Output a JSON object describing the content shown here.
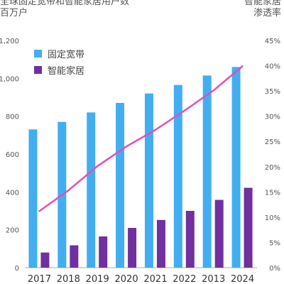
{
  "title_left": "全球固定宽带和智能家居用户数",
  "subtitle_left": "百万户",
  "title_right_line1": "智能家居",
  "title_right_line2": "渗透率",
  "colors": {
    "bar_broadband": "#42aef0",
    "bar_smarthome": "#7030a0",
    "line_penetration": "#e050b8",
    "axis_text": "#555555",
    "axis_line": "#aaaaaa"
  },
  "chart_data": {
    "type": "bar",
    "categories": [
      "2017",
      "2018",
      "2019",
      "2020",
      "2021",
      "2022",
      "2013",
      "2024"
    ],
    "series": [
      {
        "name": "固定宽带",
        "type": "bar",
        "axis": "left",
        "values": [
          730,
          770,
          820,
          870,
          920,
          965,
          1015,
          1060
        ]
      },
      {
        "name": "智能家居",
        "type": "bar",
        "axis": "left",
        "values": [
          80,
          118,
          165,
          210,
          252,
          300,
          358,
          422
        ]
      },
      {
        "type": "line",
        "axis": "right",
        "values": [
          11.2,
          15.3,
          20.1,
          24.0,
          27.3,
          31.1,
          35.1,
          39.9
        ]
      }
    ],
    "y_left": {
      "min": 0,
      "max": 1200,
      "ticks": [
        "0",
        "200",
        "400",
        "600",
        "800",
        "1,000",
        "1,200"
      ]
    },
    "y_right": {
      "min": 0,
      "max": 45,
      "ticks": [
        "0%",
        "5%",
        "10%",
        "15%",
        "20%",
        "25%",
        "30%",
        "35%",
        "40%",
        "45%"
      ]
    },
    "grid": false,
    "legend_position": "top-left"
  }
}
